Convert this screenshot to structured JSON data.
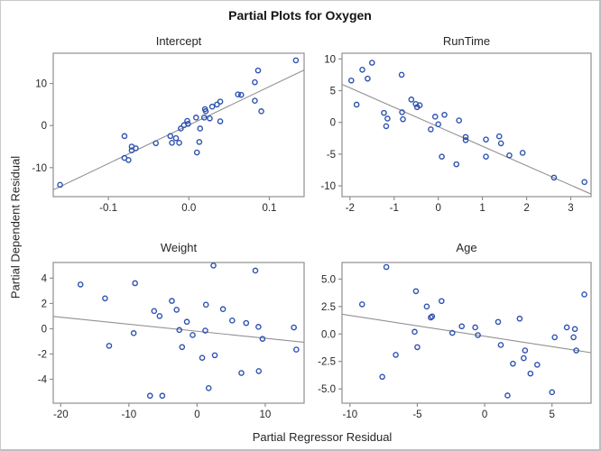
{
  "figure": {
    "title": "Partial Plots for Oxygen",
    "x_axis_label": "Partial Regressor Residual",
    "y_axis_label": "Partial Dependent Residual"
  },
  "colors": {
    "marker": "#2e52ae",
    "fit_line": "#919191",
    "frame": "#8f8f8f",
    "tick": "#8f8f8f",
    "text": "#262626",
    "border": "#c9c9c9"
  },
  "chart_data": [
    {
      "type": "scatter",
      "title": "Intercept",
      "xlim": [
        -0.1685,
        0.1432
      ],
      "ylim": [
        -16.9,
        17.2
      ],
      "xticks": {
        "values": [
          -0.1,
          0,
          0.1
        ],
        "labels": [
          "-0.1",
          "0.0",
          "0.1"
        ]
      },
      "yticks": {
        "values": [
          -10,
          0,
          10
        ],
        "labels": [
          "-10",
          "0",
          "10"
        ]
      },
      "fit_line": {
        "x1": -0.1685,
        "y1": -15.3,
        "x2": 0.1432,
        "y2": 13.2
      },
      "points": [
        [
          -0.16,
          -14.1
        ],
        [
          -0.08,
          -2.5
        ],
        [
          -0.08,
          -7.7
        ],
        [
          -0.075,
          -8.2
        ],
        [
          -0.071,
          -5.0
        ],
        [
          -0.071,
          -5.9
        ],
        [
          -0.066,
          -5.4
        ],
        [
          -0.041,
          -4.2
        ],
        [
          -0.023,
          -2.5
        ],
        [
          -0.016,
          -3.0
        ],
        [
          -0.021,
          -4.1
        ],
        [
          -0.012,
          -4.1
        ],
        [
          -0.01,
          -0.7
        ],
        [
          -0.006,
          0.1
        ],
        [
          -0.002,
          1.1
        ],
        [
          -0.001,
          0.4
        ],
        [
          0.009,
          1.9
        ],
        [
          0.014,
          -0.7
        ],
        [
          0.013,
          -3.9
        ],
        [
          0.01,
          -6.4
        ],
        [
          0.019,
          1.9
        ],
        [
          0.02,
          3.9
        ],
        [
          0.021,
          3.4
        ],
        [
          0.026,
          1.7
        ],
        [
          0.029,
          4.5
        ],
        [
          0.035,
          5.0
        ],
        [
          0.039,
          5.7
        ],
        [
          0.039,
          1.0
        ],
        [
          0.061,
          7.4
        ],
        [
          0.065,
          7.3
        ],
        [
          0.082,
          10.3
        ],
        [
          0.086,
          13.1
        ],
        [
          0.082,
          5.9
        ],
        [
          0.09,
          3.4
        ],
        [
          0.133,
          15.5
        ]
      ]
    },
    {
      "type": "scatter",
      "title": "RunTime",
      "xlim": [
        -2.18,
        3.46
      ],
      "ylim": [
        -11.7,
        10.9
      ],
      "xticks": {
        "values": [
          -2,
          -1,
          0,
          1,
          2,
          3
        ],
        "labels": [
          "-2",
          "-1",
          "0",
          "1",
          "2",
          "3"
        ]
      },
      "yticks": {
        "values": [
          -10,
          -5,
          0,
          5,
          10
        ],
        "labels": [
          "-10",
          "-5",
          "0",
          "5",
          "10"
        ]
      },
      "fit_line": {
        "x1": -2.18,
        "y1": 6.0,
        "x2": 3.46,
        "y2": -11.3
      },
      "points": [
        [
          -1.97,
          6.6
        ],
        [
          -1.85,
          2.8
        ],
        [
          -1.72,
          8.3
        ],
        [
          -1.6,
          6.9
        ],
        [
          -1.5,
          9.4
        ],
        [
          -1.23,
          1.5
        ],
        [
          -1.18,
          -0.6
        ],
        [
          -1.15,
          0.6
        ],
        [
          -0.83,
          7.5
        ],
        [
          -0.82,
          1.6
        ],
        [
          -0.8,
          0.5
        ],
        [
          -0.61,
          3.6
        ],
        [
          -0.51,
          2.9
        ],
        [
          -0.48,
          2.4
        ],
        [
          -0.42,
          2.7
        ],
        [
          -0.17,
          -1.1
        ],
        [
          -0.07,
          0.9
        ],
        [
          0.0,
          -0.3
        ],
        [
          0.08,
          -5.4
        ],
        [
          0.14,
          1.2
        ],
        [
          0.41,
          -6.6
        ],
        [
          0.47,
          0.3
        ],
        [
          0.62,
          -2.3
        ],
        [
          0.62,
          -2.8
        ],
        [
          1.08,
          -2.7
        ],
        [
          1.08,
          -5.4
        ],
        [
          1.38,
          -2.2
        ],
        [
          1.42,
          -3.3
        ],
        [
          1.61,
          -5.2
        ],
        [
          1.91,
          -4.8
        ],
        [
          2.62,
          -8.7
        ],
        [
          3.31,
          -9.4
        ]
      ]
    },
    {
      "type": "scatter",
      "title": "Weight",
      "xlim": [
        -21.1,
        15.7
      ],
      "ylim": [
        -5.89,
        5.24
      ],
      "xticks": {
        "values": [
          -20,
          -10,
          0,
          10
        ],
        "labels": [
          "-20",
          "-10",
          "0",
          "10"
        ]
      },
      "yticks": {
        "values": [
          -4,
          -2,
          0,
          2,
          4
        ],
        "labels": [
          "-4",
          "-2",
          "0",
          "2",
          "4"
        ]
      },
      "fit_line": {
        "x1": -21.1,
        "y1": 0.97,
        "x2": 15.7,
        "y2": -1.07
      },
      "points": [
        [
          -17.1,
          3.5
        ],
        [
          -13.5,
          2.4
        ],
        [
          -12.9,
          -1.35
        ],
        [
          -9.1,
          3.6
        ],
        [
          -9.3,
          -0.35
        ],
        [
          -6.9,
          -5.3
        ],
        [
          -5.1,
          -5.3
        ],
        [
          -6.3,
          1.4
        ],
        [
          -5.5,
          1.0
        ],
        [
          -3.7,
          2.2
        ],
        [
          -3.0,
          1.5
        ],
        [
          -2.6,
          -0.1
        ],
        [
          -1.5,
          0.55
        ],
        [
          -2.2,
          -1.45
        ],
        [
          -0.65,
          -0.5
        ],
        [
          1.3,
          1.9
        ],
        [
          1.2,
          -0.15
        ],
        [
          0.75,
          -2.3
        ],
        [
          2.6,
          -2.1
        ],
        [
          1.7,
          -4.7
        ],
        [
          2.4,
          5.0
        ],
        [
          3.8,
          1.55
        ],
        [
          5.15,
          0.65
        ],
        [
          6.5,
          -3.5
        ],
        [
          7.2,
          0.45
        ],
        [
          8.55,
          4.6
        ],
        [
          9.0,
          0.15
        ],
        [
          9.05,
          -3.35
        ],
        [
          9.6,
          -0.8
        ],
        [
          14.2,
          0.1
        ],
        [
          14.55,
          -1.65
        ]
      ]
    },
    {
      "type": "scatter",
      "title": "Age",
      "xlim": [
        -10.59,
        7.9
      ],
      "ylim": [
        -6.3,
        6.51
      ],
      "xticks": {
        "values": [
          -10,
          -5,
          0,
          5
        ],
        "labels": [
          "-10",
          "-5",
          "0",
          "5"
        ]
      },
      "yticks": {
        "values": [
          -5,
          -2.5,
          0,
          2.5,
          5
        ],
        "labels": [
          "-5.0",
          "-2.5",
          "0.0",
          "2.5",
          "5.0"
        ]
      },
      "fit_line": {
        "x1": -10.59,
        "y1": 1.8,
        "x2": 7.9,
        "y2": -1.7
      },
      "points": [
        [
          -9.1,
          2.7
        ],
        [
          -7.3,
          6.1
        ],
        [
          -7.6,
          -3.9
        ],
        [
          -6.6,
          -1.9
        ],
        [
          -5.1,
          3.9
        ],
        [
          -4.3,
          2.5
        ],
        [
          -5.2,
          0.2
        ],
        [
          -5.0,
          -1.2
        ],
        [
          -4.0,
          1.5
        ],
        [
          -3.9,
          1.6
        ],
        [
          -3.2,
          3.0
        ],
        [
          -2.4,
          0.1
        ],
        [
          -1.7,
          0.7
        ],
        [
          -0.7,
          0.6
        ],
        [
          -0.5,
          -0.1
        ],
        [
          1.0,
          1.1
        ],
        [
          1.2,
          -1.0
        ],
        [
          1.7,
          -5.6
        ],
        [
          2.1,
          -2.7
        ],
        [
          2.6,
          1.4
        ],
        [
          2.9,
          -2.2
        ],
        [
          3.0,
          -1.5
        ],
        [
          3.4,
          -3.6
        ],
        [
          3.9,
          -2.8
        ],
        [
          5.0,
          -5.3
        ],
        [
          5.2,
          -0.3
        ],
        [
          6.1,
          0.6
        ],
        [
          6.7,
          0.45
        ],
        [
          6.6,
          -0.3
        ],
        [
          6.8,
          -1.5
        ],
        [
          7.4,
          3.6
        ]
      ]
    }
  ]
}
